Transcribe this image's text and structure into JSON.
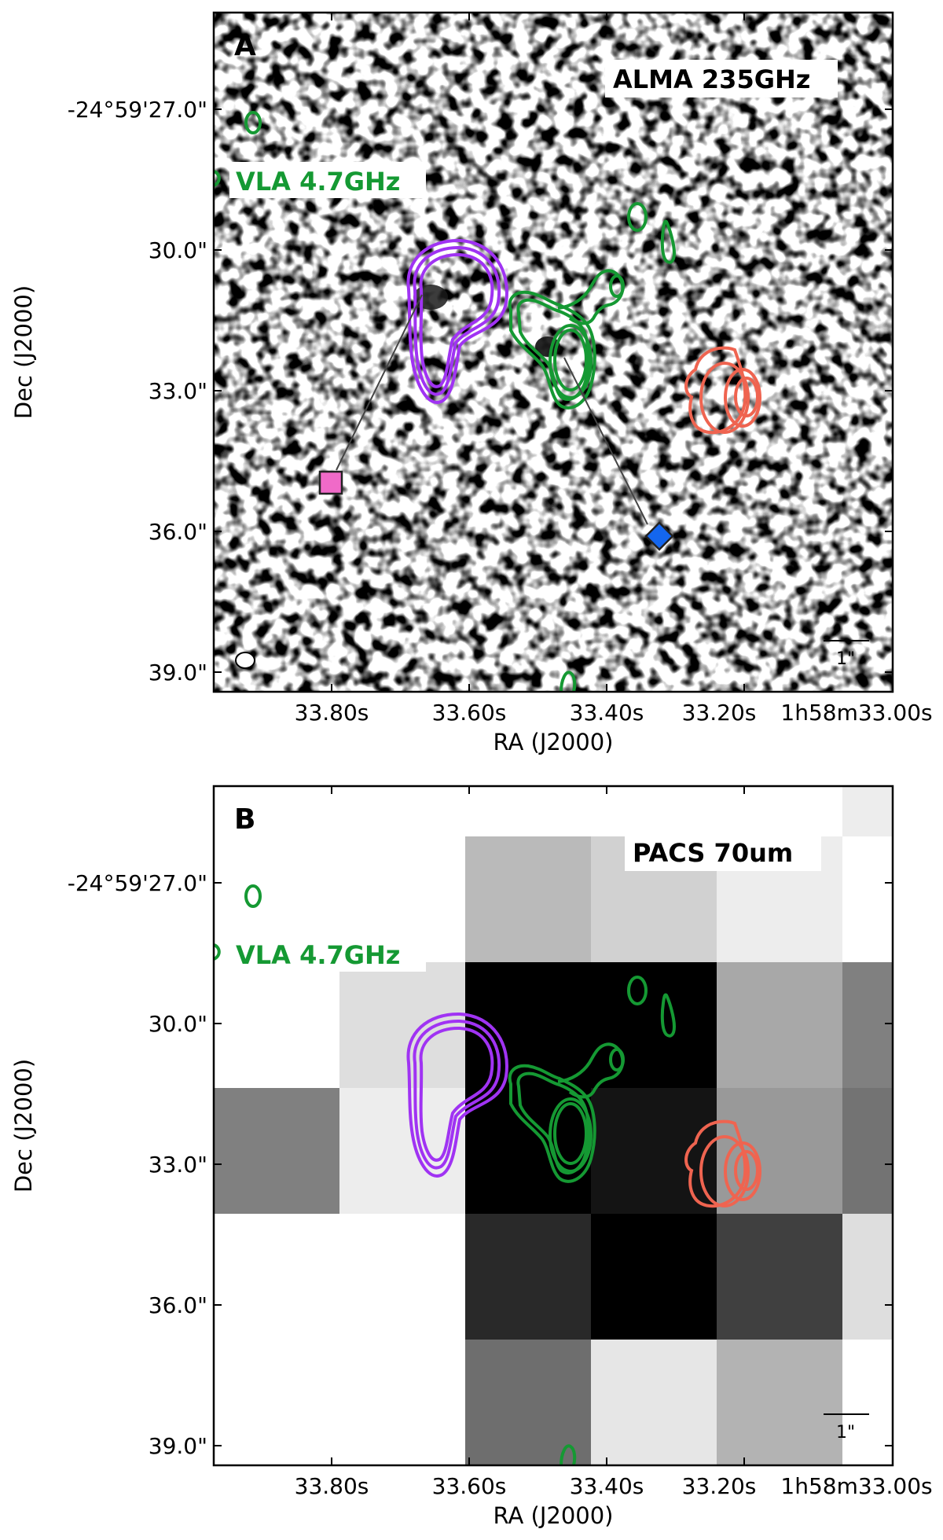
{
  "colors": {
    "vla_contour": "#159933",
    "purple_contour": "#a033f3",
    "red_contour": "#ef6450",
    "square_marker": "#f06ac8",
    "diamond_marker": "#1466ee"
  },
  "icons": {
    "square_marker": "square-marker-icon",
    "diamond_marker": "diamond-marker-icon",
    "beam_ellipse": "beam-ellipse-icon"
  },
  "axes": {
    "ra_title": "RA (J2000)",
    "dec_title": "Dec (J2000)",
    "ra_ticks": [
      "33.80s",
      "33.60s",
      "33.40s",
      "33.20s",
      "1h58m33.00s"
    ],
    "dec_ticks": [
      "-24°59'27.0\"",
      "30.0\"",
      "33.0\"",
      "36.0\"",
      "39.0\""
    ]
  },
  "panels": [
    {
      "letter": "A",
      "band_label": "ALMA 235GHz",
      "overlay_label": "VLA 4.7GHz",
      "scale_label": "1\"",
      "background": "noise"
    },
    {
      "letter": "B",
      "band_label": "PACS 70um",
      "overlay_label": "VLA 4.7GHz",
      "scale_label": "1\"",
      "background": "pixels",
      "pixel_grid": [
        [
          1,
          1,
          1,
          1,
          1,
          0.93
        ],
        [
          1,
          1,
          0.73,
          0.82,
          0.93,
          1
        ],
        [
          1,
          0.87,
          0.0,
          0.0,
          0.66,
          0.5
        ],
        [
          0.5,
          0.93,
          0.0,
          0.08,
          0.6,
          0.45
        ],
        [
          1,
          1,
          0.16,
          0.0,
          0.25,
          0.87
        ],
        [
          1,
          1,
          0.43,
          0.9,
          0.7,
          1
        ]
      ]
    }
  ]
}
